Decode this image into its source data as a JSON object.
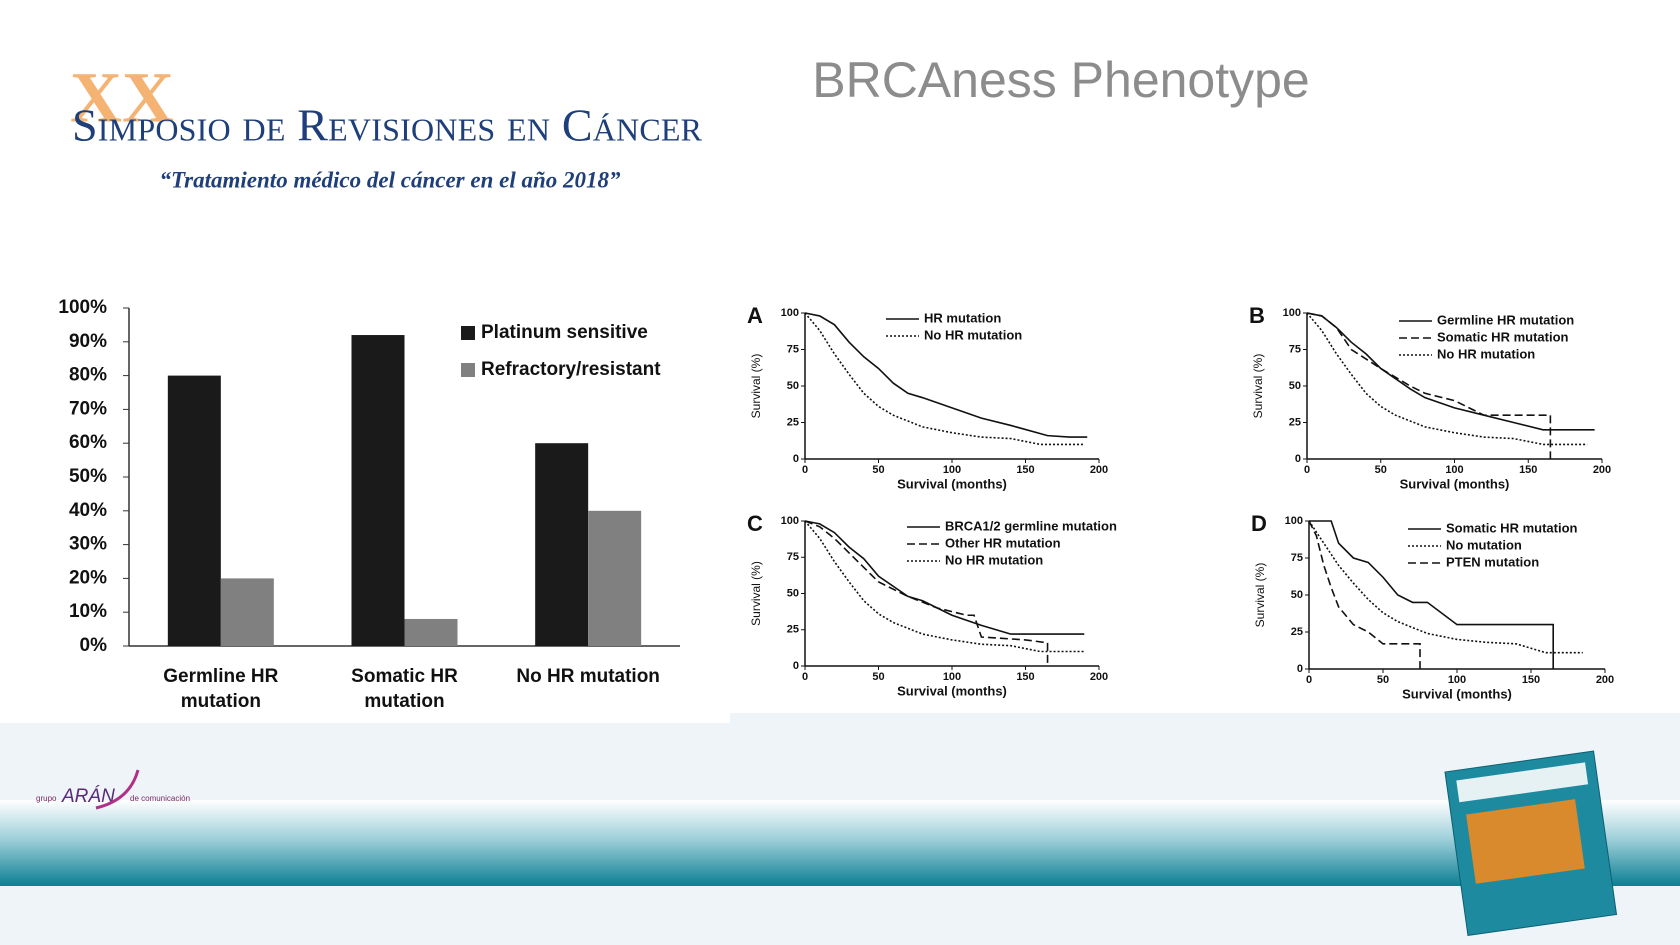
{
  "header": {
    "title": "BRCAness Phenotype",
    "event_number": "XX",
    "event_name": "Simposio de Revisiones en Cáncer",
    "event_subtitle": "“Tratamiento médico del cáncer en el año 2018”"
  },
  "logo": {
    "prefix": "grupo",
    "name": "ARÁN",
    "suffix": "de comunicación"
  },
  "chart_data": [
    {
      "type": "bar",
      "categories": [
        "Germline HR mutation",
        "Somatic HR mutation",
        "No HR mutation"
      ],
      "series": [
        {
          "name": "Platinum sensitive",
          "color": "#1a1a1a",
          "values": [
            80,
            92,
            60
          ]
        },
        {
          "name": "Refractory/resistant",
          "color": "#808080",
          "values": [
            20,
            8,
            40
          ]
        }
      ],
      "ylim": [
        0,
        100
      ],
      "yticks": [
        {
          "value": 0,
          "label": "0%"
        },
        {
          "value": 10,
          "label": "10%"
        },
        {
          "value": 20,
          "label": "20%"
        },
        {
          "value": 30,
          "label": "30%"
        },
        {
          "value": 40,
          "label": "40%"
        },
        {
          "value": 50,
          "label": "50%"
        },
        {
          "value": 60,
          "label": "60%"
        },
        {
          "value": 70,
          "label": "70%"
        },
        {
          "value": 80,
          "label": "80%"
        },
        {
          "value": 90,
          "label": "90%"
        },
        {
          "value": 100,
          "label": "100%"
        }
      ],
      "legend": "upper right",
      "grid": false
    },
    {
      "type": "line",
      "panel": "A",
      "xlabel": "Survival (months)",
      "ylabel": "Survival (%)",
      "xlim": [
        0,
        200
      ],
      "xticks": [
        0,
        50,
        100,
        150,
        200
      ],
      "ylim": [
        0,
        100
      ],
      "yticks": [
        0,
        25,
        50,
        75,
        100
      ],
      "legend": "upper right",
      "series": [
        {
          "name": "HR mutation",
          "color": "#111111",
          "dash": "solid",
          "x": [
            0,
            10,
            20,
            30,
            40,
            50,
            60,
            70,
            80,
            100,
            120,
            140,
            165,
            180,
            192
          ],
          "values": [
            100,
            98,
            92,
            80,
            70,
            62,
            52,
            45,
            42,
            35,
            28,
            23,
            16,
            15,
            15
          ]
        },
        {
          "name": "No HR mutation",
          "color": "#111111",
          "dash": "dotted",
          "x": [
            0,
            10,
            20,
            30,
            40,
            50,
            60,
            80,
            100,
            120,
            140,
            160,
            180,
            190
          ],
          "values": [
            100,
            88,
            72,
            58,
            45,
            36,
            30,
            22,
            18,
            15,
            14,
            10,
            10,
            10
          ]
        }
      ]
    },
    {
      "type": "line",
      "panel": "B",
      "xlabel": "Survival (months)",
      "ylabel": "Survival (%)",
      "xlim": [
        0,
        200
      ],
      "xticks": [
        0,
        50,
        100,
        150,
        200
      ],
      "ylim": [
        0,
        100
      ],
      "yticks": [
        0,
        25,
        50,
        75,
        100
      ],
      "legend": "upper right",
      "series": [
        {
          "name": "Germline HR mutation",
          "color": "#111111",
          "dash": "solid",
          "x": [
            0,
            10,
            20,
            30,
            40,
            50,
            60,
            70,
            80,
            100,
            120,
            140,
            160,
            190,
            195
          ],
          "values": [
            100,
            98,
            90,
            80,
            72,
            62,
            55,
            48,
            42,
            35,
            30,
            25,
            20,
            20,
            20
          ]
        },
        {
          "name": "Somatic HR mutation",
          "color": "#111111",
          "dash": "dashed",
          "x": [
            0,
            10,
            20,
            30,
            50,
            70,
            80,
            100,
            120,
            140,
            165,
            165
          ],
          "values": [
            100,
            98,
            90,
            75,
            62,
            50,
            45,
            40,
            30,
            30,
            30,
            0
          ]
        },
        {
          "name": "No HR mutation",
          "color": "#111111",
          "dash": "dotted",
          "x": [
            0,
            10,
            20,
            30,
            40,
            50,
            60,
            80,
            100,
            120,
            140,
            160,
            180,
            190
          ],
          "values": [
            100,
            88,
            72,
            58,
            45,
            36,
            30,
            22,
            18,
            15,
            14,
            10,
            10,
            10
          ]
        }
      ]
    },
    {
      "type": "line",
      "panel": "C",
      "xlabel": "Survival (months)",
      "ylabel": "Survival (%)",
      "xlim": [
        0,
        200
      ],
      "xticks": [
        0,
        50,
        100,
        150,
        200
      ],
      "ylim": [
        0,
        100
      ],
      "yticks": [
        0,
        25,
        50,
        75,
        100
      ],
      "legend": "upper right",
      "series": [
        {
          "name": "BRCA1/2 germline mutation",
          "color": "#111111",
          "dash": "solid",
          "x": [
            0,
            10,
            20,
            30,
            40,
            50,
            60,
            70,
            80,
            100,
            120,
            140,
            160,
            190
          ],
          "values": [
            100,
            98,
            92,
            82,
            74,
            62,
            55,
            48,
            45,
            35,
            28,
            22,
            22,
            22
          ]
        },
        {
          "name": "Other HR mutation",
          "color": "#111111",
          "dash": "dashed",
          "x": [
            0,
            10,
            20,
            30,
            40,
            50,
            70,
            90,
            110,
            115,
            120,
            150,
            165,
            165
          ],
          "values": [
            100,
            96,
            88,
            78,
            68,
            58,
            48,
            40,
            35,
            35,
            20,
            18,
            16,
            0
          ]
        },
        {
          "name": "No HR mutation",
          "color": "#111111",
          "dash": "dotted",
          "x": [
            0,
            10,
            20,
            30,
            40,
            50,
            60,
            80,
            100,
            120,
            140,
            160,
            180,
            190
          ],
          "values": [
            100,
            88,
            72,
            58,
            45,
            36,
            30,
            22,
            18,
            15,
            14,
            10,
            10,
            10
          ]
        }
      ]
    },
    {
      "type": "line",
      "panel": "D",
      "xlabel": "Survival (months)",
      "ylabel": "Survival (%)",
      "xlim": [
        0,
        200
      ],
      "xticks": [
        0,
        50,
        100,
        150,
        200
      ],
      "ylim": [
        0,
        100
      ],
      "yticks": [
        0,
        25,
        50,
        75,
        100
      ],
      "legend": "upper right",
      "series": [
        {
          "name": "Somatic HR mutation",
          "color": "#111111",
          "dash": "solid",
          "x": [
            0,
            15,
            20,
            30,
            40,
            50,
            60,
            70,
            80,
            100,
            120,
            165,
            165
          ],
          "values": [
            100,
            100,
            85,
            75,
            72,
            62,
            50,
            45,
            45,
            30,
            30,
            30,
            0
          ]
        },
        {
          "name": "No mutation",
          "color": "#111111",
          "dash": "dotted",
          "x": [
            0,
            10,
            20,
            30,
            40,
            50,
            60,
            80,
            100,
            120,
            140,
            160,
            180,
            185
          ],
          "values": [
            100,
            85,
            70,
            58,
            47,
            38,
            32,
            24,
            20,
            18,
            17,
            11,
            11,
            11
          ]
        },
        {
          "name": "PTEN mutation",
          "color": "#111111",
          "dash": "dashed",
          "x": [
            0,
            5,
            10,
            15,
            20,
            30,
            40,
            50,
            60,
            75,
            75
          ],
          "values": [
            100,
            90,
            70,
            55,
            42,
            30,
            25,
            17,
            17,
            17,
            0
          ]
        }
      ]
    }
  ]
}
